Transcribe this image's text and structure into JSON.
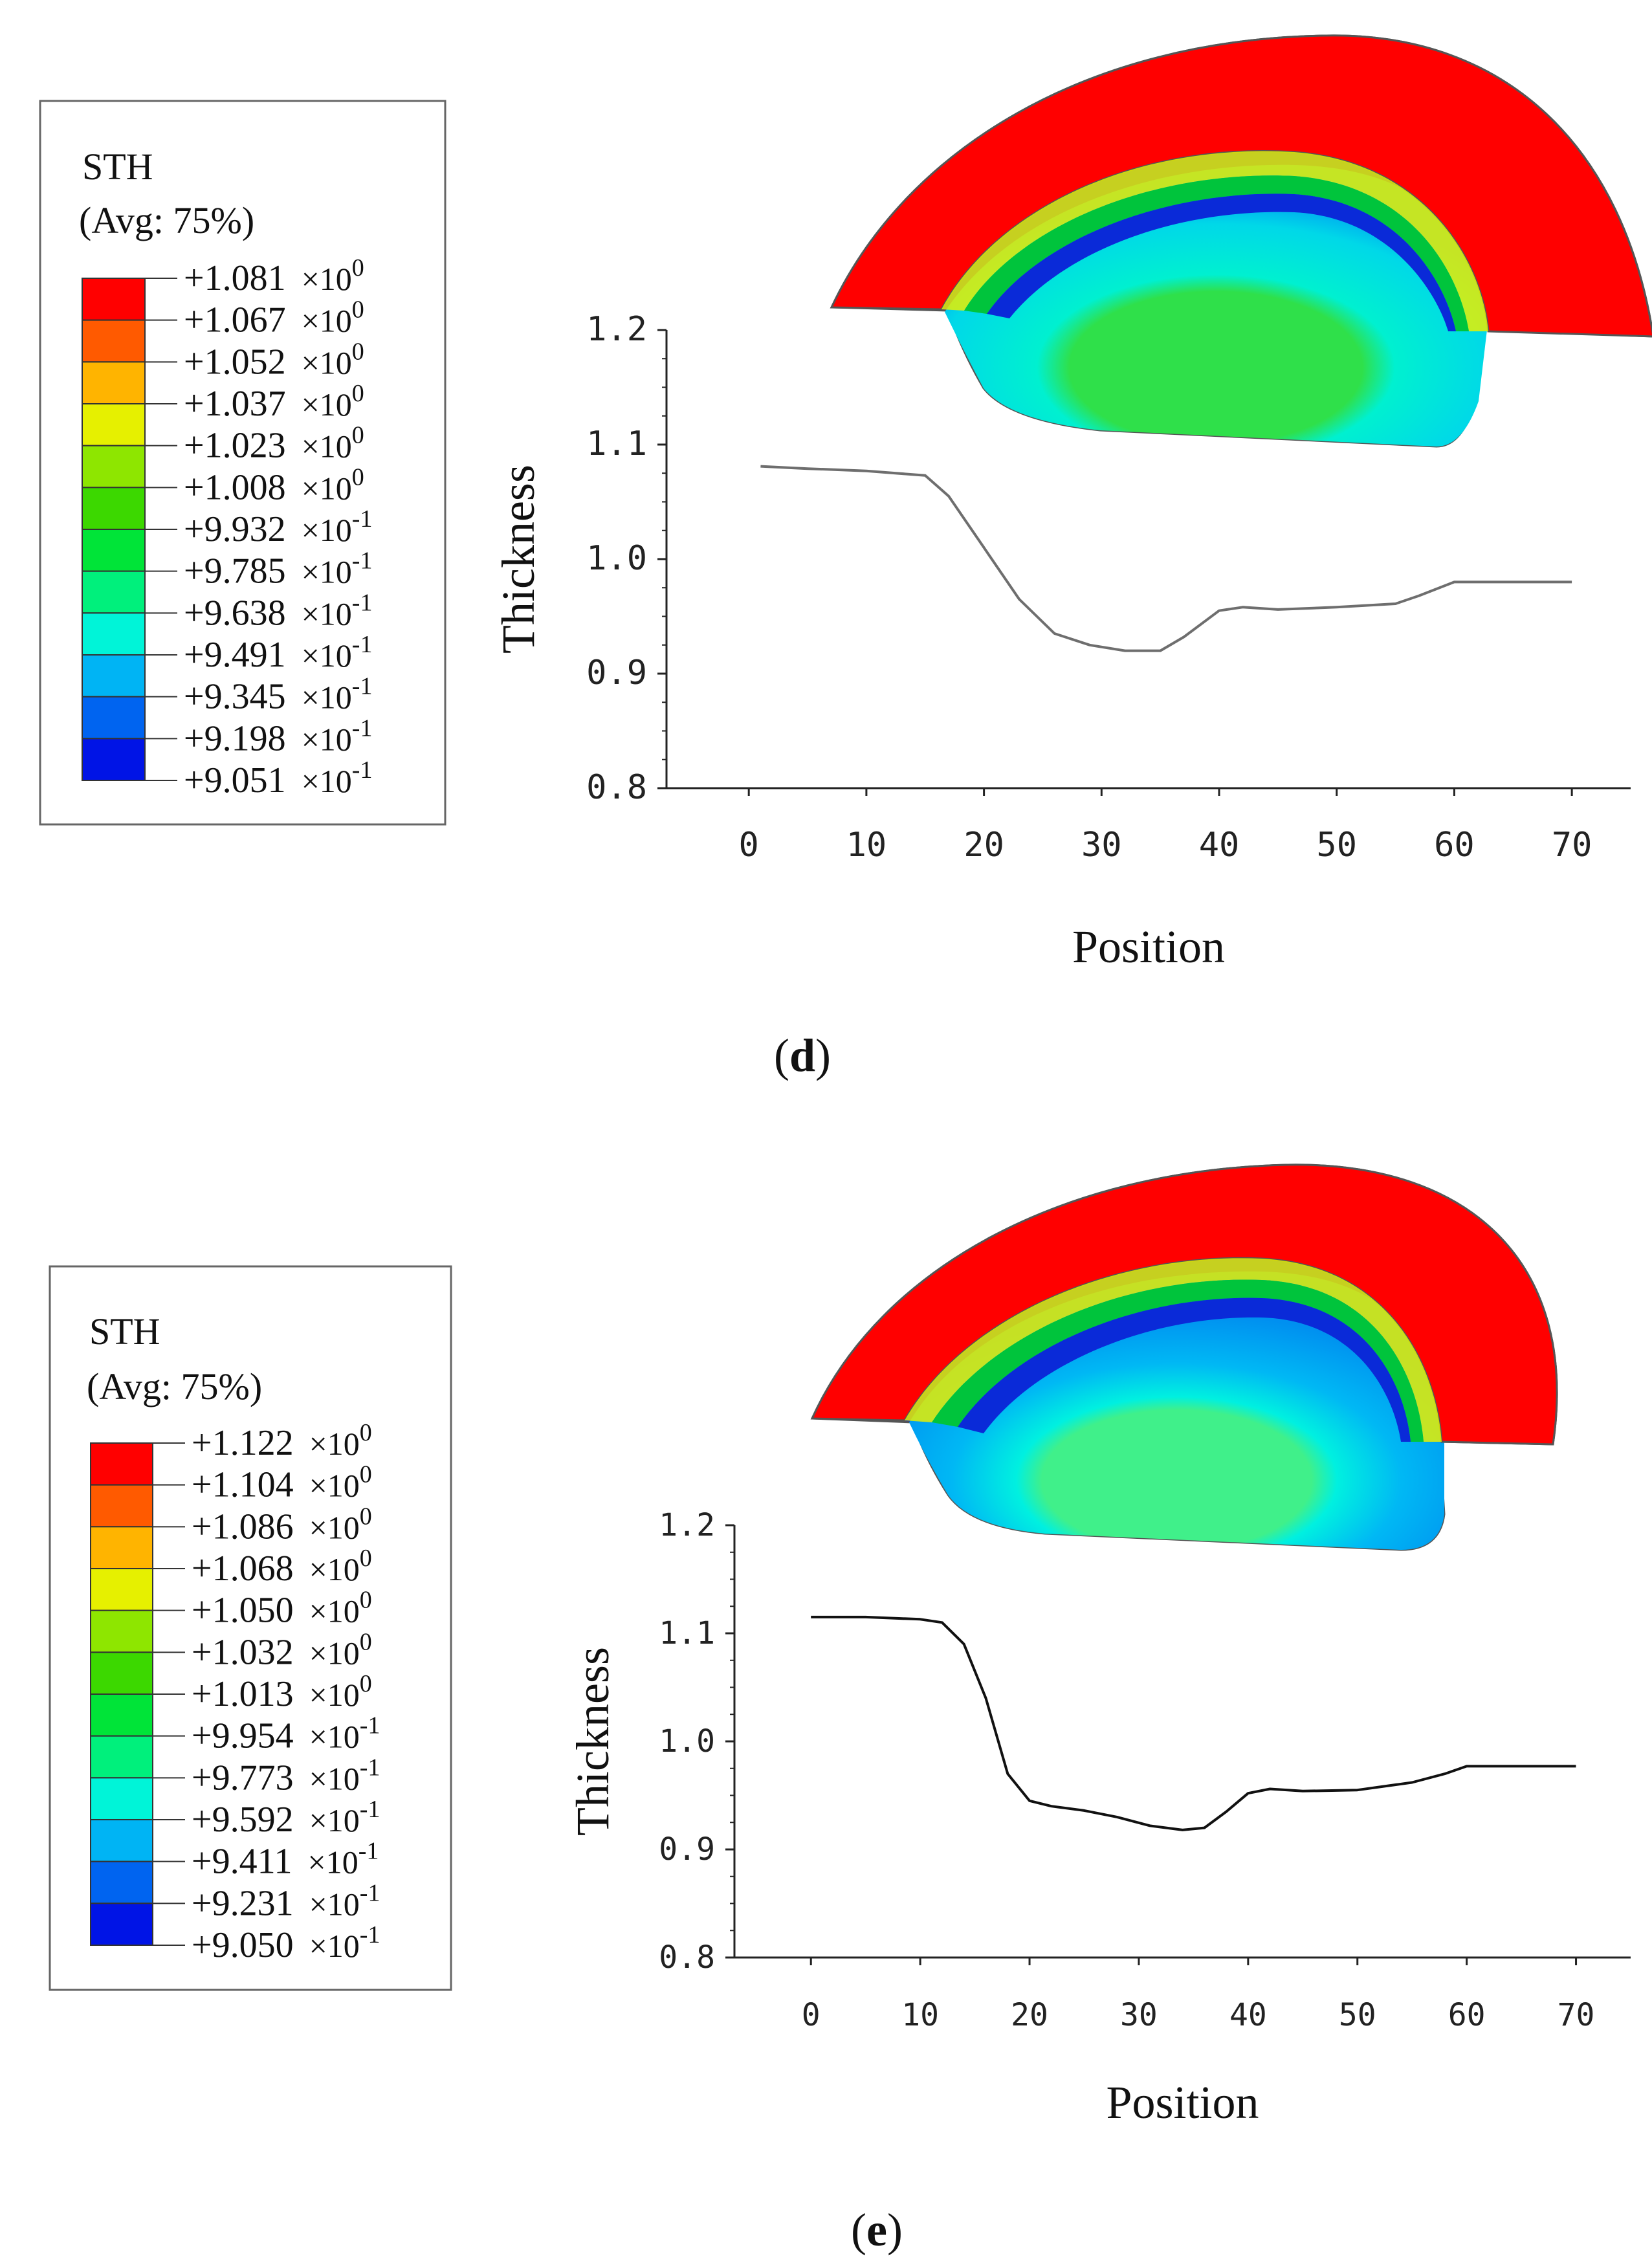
{
  "panels": {
    "d": {
      "legend": {
        "title": "STH",
        "subtitle": "(Avg: 75%)",
        "entries": [
          {
            "mant": "+1.081",
            "exp": "0"
          },
          {
            "mant": "+1.067",
            "exp": "0"
          },
          {
            "mant": "+1.052",
            "exp": "0"
          },
          {
            "mant": "+1.037",
            "exp": "0"
          },
          {
            "mant": "+1.023",
            "exp": "0"
          },
          {
            "mant": "+1.008",
            "exp": "0"
          },
          {
            "mant": "+9.932",
            "exp": "-1"
          },
          {
            "mant": "+9.785",
            "exp": "-1"
          },
          {
            "mant": "+9.638",
            "exp": "-1"
          },
          {
            "mant": "+9.491",
            "exp": "-1"
          },
          {
            "mant": "+9.345",
            "exp": "-1"
          },
          {
            "mant": "+9.198",
            "exp": "-1"
          },
          {
            "mant": "+9.051",
            "exp": "-1"
          }
        ]
      },
      "caption_letter": "d"
    },
    "e": {
      "legend": {
        "title": "STH",
        "subtitle": "(Avg: 75%)",
        "entries": [
          {
            "mant": "+1.122",
            "exp": "0"
          },
          {
            "mant": "+1.104",
            "exp": "0"
          },
          {
            "mant": "+1.086",
            "exp": "0"
          },
          {
            "mant": "+1.068",
            "exp": "0"
          },
          {
            "mant": "+1.050",
            "exp": "0"
          },
          {
            "mant": "+1.032",
            "exp": "0"
          },
          {
            "mant": "+1.013",
            "exp": "0"
          },
          {
            "mant": "+9.954",
            "exp": "-1"
          },
          {
            "mant": "+9.773",
            "exp": "-1"
          },
          {
            "mant": "+9.592",
            "exp": "-1"
          },
          {
            "mant": "+9.411",
            "exp": "-1"
          },
          {
            "mant": "+9.231",
            "exp": "-1"
          },
          {
            "mant": "+9.050",
            "exp": "-1"
          }
        ]
      },
      "caption_letter": "e"
    }
  },
  "legend_colors": [
    "#ff0000",
    "#ff5a00",
    "#ffb400",
    "#e6f000",
    "#8ee600",
    "#3cd800",
    "#00e438",
    "#00f07c",
    "#00f4d8",
    "#00b4f4",
    "#0064f0",
    "#0014e6"
  ],
  "chart_data": [
    {
      "type": "line",
      "panel": "d",
      "title": "",
      "xlabel": "Position",
      "ylabel": "Thickness",
      "xlim": [
        -7,
        75
      ],
      "ylim": [
        0.8,
        1.2
      ],
      "xticks": [
        "0",
        "10",
        "20",
        "30",
        "40",
        "50",
        "60",
        "70"
      ],
      "yticks": [
        "0.8",
        "0.9",
        "1.0",
        "1.1",
        "1.2"
      ],
      "series": [
        {
          "name": "STH",
          "x": [
            1,
            5,
            10,
            15,
            17,
            20,
            23,
            26,
            29,
            32,
            35,
            37,
            40,
            42,
            45,
            50,
            55,
            57,
            60,
            65,
            70
          ],
          "y": [
            1.081,
            1.079,
            1.077,
            1.073,
            1.055,
            1.01,
            0.965,
            0.935,
            0.925,
            0.92,
            0.92,
            0.932,
            0.955,
            0.958,
            0.956,
            0.958,
            0.961,
            0.968,
            0.98,
            0.98,
            0.98
          ]
        }
      ]
    },
    {
      "type": "line",
      "panel": "e",
      "title": "",
      "xlabel": "Position",
      "ylabel": "Thickness",
      "xlim": [
        -7,
        75
      ],
      "ylim": [
        0.8,
        1.2
      ],
      "xticks": [
        "0",
        "10",
        "20",
        "30",
        "40",
        "50",
        "60",
        "70"
      ],
      "yticks": [
        "0.8",
        "0.9",
        "1.0",
        "1.1",
        "1.2"
      ],
      "series": [
        {
          "name": "STH",
          "x": [
            0,
            5,
            10,
            12,
            14,
            16,
            18,
            20,
            22,
            25,
            28,
            31,
            34,
            36,
            38,
            40,
            42,
            45,
            50,
            55,
            58,
            60,
            65,
            70
          ],
          "y": [
            1.115,
            1.115,
            1.113,
            1.11,
            1.09,
            1.04,
            0.97,
            0.945,
            0.94,
            0.936,
            0.93,
            0.922,
            0.918,
            0.92,
            0.935,
            0.952,
            0.956,
            0.954,
            0.955,
            0.962,
            0.97,
            0.977,
            0.977,
            0.977
          ]
        }
      ]
    }
  ]
}
